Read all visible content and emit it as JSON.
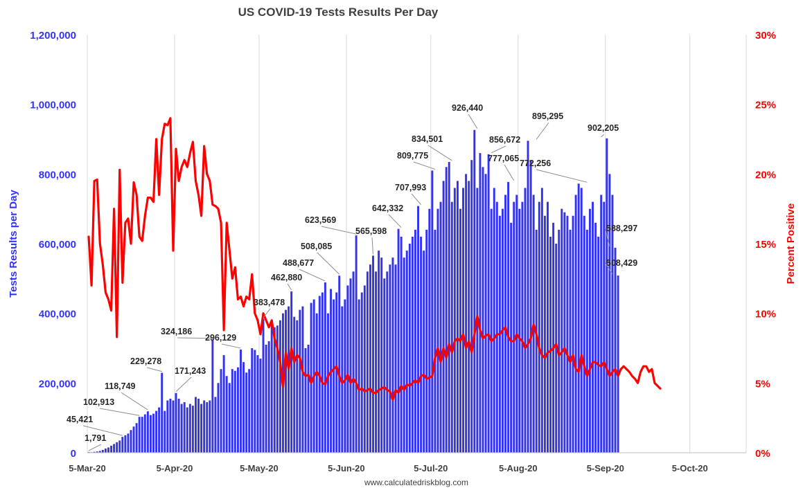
{
  "chart_data": {
    "type": "bar",
    "title": "US COVID-19 Tests Results Per Day",
    "ylabel": "Tests Results per Day",
    "y2label": "Percent Positive",
    "source": "www.calculatedriskblog.com",
    "x_range": [
      "2020-03-05",
      "2020-10-25"
    ],
    "ylim": [
      0,
      1200000
    ],
    "y2lim": [
      0,
      30
    ],
    "yticks": [
      "0",
      "200,000",
      "400,000",
      "600,000",
      "800,000",
      "1,000,000",
      "1,200,000"
    ],
    "y2ticks": [
      "0%",
      "5%",
      "10%",
      "15%",
      "20%",
      "25%",
      "30%"
    ],
    "xticks": [
      {
        "date": "2020-03-05",
        "label": "5-Mar-20"
      },
      {
        "date": "2020-04-05",
        "label": "5-Apr-20"
      },
      {
        "date": "2020-05-05",
        "label": "5-May-20"
      },
      {
        "date": "2020-06-05",
        "label": "5-Jun-20"
      },
      {
        "date": "2020-07-05",
        "label": "5-Jul-20"
      },
      {
        "date": "2020-08-05",
        "label": "5-Aug-20"
      },
      {
        "date": "2020-09-05",
        "label": "5-Sep-20"
      },
      {
        "date": "2020-10-05",
        "label": "5-Oct-20"
      }
    ],
    "grid": "vertical",
    "colors": {
      "bars": "#3333ee",
      "line": "#ff0000",
      "grid": "#d9d9d9"
    },
    "series": [
      {
        "name": "Tests Results per Day",
        "type": "bar",
        "start_date": "2020-03-05",
        "values": [
          1791,
          1500,
          2500,
          3500,
          5000,
          8000,
          12000,
          15000,
          20000,
          25000,
          30000,
          35000,
          45421,
          50000,
          55000,
          65000,
          75000,
          85000,
          102913,
          103000,
          110000,
          118749,
          108000,
          112000,
          120000,
          130000,
          229278,
          120000,
          150000,
          155000,
          150000,
          171243,
          155000,
          140000,
          145000,
          130000,
          140000,
          135000,
          160000,
          155000,
          140000,
          150000,
          145000,
          150000,
          324186,
          160000,
          200000,
          240000,
          280000,
          220000,
          200000,
          240000,
          235000,
          245000,
          296129,
          260000,
          230000,
          240000,
          300000,
          295000,
          280000,
          270000,
          383478,
          310000,
          320000,
          370000,
          360000,
          365000,
          380000,
          400000,
          410000,
          420000,
          462880,
          390000,
          380000,
          410000,
          420000,
          300000,
          310000,
          430000,
          440000,
          400000,
          450000,
          460000,
          488677,
          400000,
          470000,
          440000,
          460000,
          508085,
          420000,
          440000,
          480000,
          500000,
          520000,
          623569,
          440000,
          460000,
          480000,
          520000,
          540000,
          565598,
          520000,
          580000,
          560000,
          500000,
          520000,
          540000,
          560000,
          540000,
          642332,
          620000,
          560000,
          580000,
          600000,
          620000,
          640000,
          707993,
          620000,
          580000,
          640000,
          700000,
          809775,
          640000,
          700000,
          720000,
          780000,
          820000,
          834501,
          720000,
          760000,
          780000,
          700000,
          760000,
          800000,
          780000,
          840000,
          926440,
          760000,
          860000,
          820000,
          800000,
          856672,
          700000,
          760000,
          720000,
          680000,
          700000,
          740000,
          777065,
          660000,
          720000,
          740000,
          700000,
          720000,
          760000,
          895295,
          840000,
          740000,
          640000,
          720000,
          760000,
          680000,
          720000,
          620000,
          660000,
          600000,
          640000,
          700000,
          690000,
          680000,
          640000,
          680000,
          740000,
          772256,
          760000,
          680000,
          640000,
          700000,
          720000,
          660000,
          620000,
          740000,
          720000,
          902205,
          800000,
          740000,
          588297,
          508429
        ]
      },
      {
        "name": "Percent Positive",
        "type": "line",
        "start_date": "2020-03-05",
        "values": [
          15.5,
          12.0,
          19.5,
          19.6,
          15.0,
          13.5,
          11.5,
          11.0,
          10.2,
          17.5,
          8.3,
          20.3,
          12.2,
          16.5,
          16.8,
          15.0,
          19.4,
          18.5,
          15.5,
          15.2,
          17.0,
          18.3,
          18.3,
          18.0,
          22.5,
          18.5,
          22.5,
          23.6,
          23.5,
          24.0,
          14.5,
          21.8,
          19.5,
          20.5,
          21.0,
          20.5,
          21.5,
          22.3,
          19.5,
          18.5,
          17.0,
          22.0,
          20.0,
          19.5,
          17.8,
          17.7,
          17.5,
          16.5,
          8.8,
          16.5,
          14.5,
          12.5,
          13.3,
          11.0,
          11.2,
          10.5,
          11.2,
          11.0,
          12.8,
          10.0,
          9.5,
          8.5,
          10.0,
          9.5,
          9.0,
          9.5,
          8.2,
          7.5,
          6.5,
          4.7,
          7.2,
          6.0,
          7.5,
          6.5,
          7.0,
          6.8,
          5.8,
          5.5,
          5.6,
          5.0,
          5.5,
          5.8,
          5.5,
          5.0,
          4.9,
          5.5,
          5.8,
          6.0,
          6.2,
          5.5,
          5.0,
          5.2,
          5.6,
          5.0,
          5.3,
          5.0,
          4.5,
          4.6,
          4.4,
          4.5,
          4.6,
          4.3,
          4.3,
          4.5,
          4.6,
          4.7,
          4.5,
          4.4,
          3.8,
          4.5,
          4.3,
          4.8,
          4.5,
          4.9,
          4.8,
          5.0,
          5.2,
          5.0,
          5.5,
          5.6,
          5.3,
          5.4,
          5.5,
          6.8,
          7.5,
          6.5,
          7.5,
          6.8,
          7.8,
          7.2,
          8.0,
          8.2,
          8.0,
          8.5,
          7.5,
          8.0,
          7.2,
          8.5,
          9.8,
          8.8,
          8.2,
          8.4,
          8.5,
          8.0,
          8.2,
          8.5,
          8.5,
          8.8,
          9.0,
          8.3,
          8.0,
          8.0,
          8.5,
          8.2,
          8.0,
          7.5,
          7.8,
          8.2,
          9.2,
          8.5,
          7.5,
          7.0,
          6.8,
          7.2,
          7.3,
          7.5,
          7.8,
          7.0,
          7.2,
          7.5,
          7.0,
          6.5,
          7.0,
          6.0,
          5.8,
          7.0,
          6.2,
          5.5,
          6.0,
          6.5,
          6.5,
          6.3,
          6.2,
          6.5,
          6.0,
          5.5,
          5.8,
          6.0,
          5.5,
          6.0,
          6.2,
          6.0,
          5.8,
          5.5,
          5.3,
          5.0,
          5.8,
          6.2,
          6.2,
          5.8,
          6.0,
          5.0,
          4.8,
          4.6
        ]
      }
    ],
    "annotations": [
      {
        "label": "1,791",
        "date": "2020-03-05",
        "value": 1791
      },
      {
        "label": "45,421",
        "date": "2020-03-17",
        "value": 45421
      },
      {
        "label": "102,913",
        "date": "2020-03-23",
        "value": 102913
      },
      {
        "label": "118,749",
        "date": "2020-03-26",
        "value": 118749
      },
      {
        "label": "229,278",
        "date": "2020-03-31",
        "value": 229278
      },
      {
        "label": "171,243",
        "date": "2020-04-05",
        "value": 171243
      },
      {
        "label": "324,186",
        "date": "2020-04-18",
        "value": 324186
      },
      {
        "label": "296,129",
        "date": "2020-04-28",
        "value": 296129
      },
      {
        "label": "383,478",
        "date": "2020-05-06",
        "value": 383478
      },
      {
        "label": "462,880",
        "date": "2020-05-16",
        "value": 462880
      },
      {
        "label": "488,677",
        "date": "2020-05-28",
        "value": 488677
      },
      {
        "label": "508,085",
        "date": "2020-06-02",
        "value": 508085
      },
      {
        "label": "623,569",
        "date": "2020-06-08",
        "value": 623569
      },
      {
        "label": "565,598",
        "date": "2020-06-14",
        "value": 565598
      },
      {
        "label": "642,332",
        "date": "2020-06-24",
        "value": 642332
      },
      {
        "label": "707,993",
        "date": "2020-07-01",
        "value": 707993
      },
      {
        "label": "809,775",
        "date": "2020-07-06",
        "value": 809775
      },
      {
        "label": "834,501",
        "date": "2020-07-12",
        "value": 834501
      },
      {
        "label": "926,440",
        "date": "2020-07-21",
        "value": 926440
      },
      {
        "label": "856,672",
        "date": "2020-07-26",
        "value": 856672
      },
      {
        "label": "777,065",
        "date": "2020-08-03",
        "value": 777065
      },
      {
        "label": "895,295",
        "date": "2020-08-11",
        "value": 895295
      },
      {
        "label": "772,256",
        "date": "2020-08-29",
        "value": 772256
      },
      {
        "label": "902,205",
        "date": "2020-09-03",
        "value": 902205
      },
      {
        "label": "588,297",
        "date": "2020-09-06",
        "value": 588297
      },
      {
        "label": "508,429",
        "date": "2020-09-07",
        "value": 508429
      }
    ]
  }
}
